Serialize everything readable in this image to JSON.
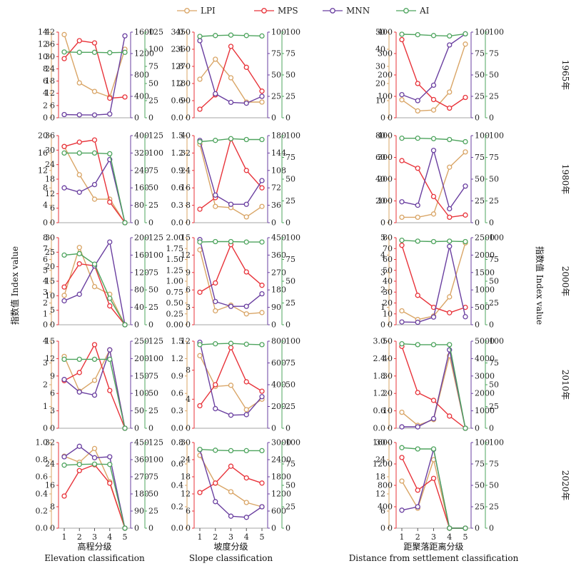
{
  "colors": {
    "LPI": "#d9a566",
    "MPS": "#e8333a",
    "MNN": "#6a3fa0",
    "AI": "#4ea45e"
  },
  "legend": [
    "LPI",
    "MPS",
    "MNN",
    "AI"
  ],
  "y_axis_label_left": "指数值 Index value",
  "y_axis_label_right": "指数值 Index value",
  "column_labels": [
    {
      "cn": "高程分级",
      "en": "Elevation classification"
    },
    {
      "cn": "坡度分级",
      "en": "Slope classification"
    },
    {
      "cn": "距聚落距离分级",
      "en": "Distance from settlement classification"
    }
  ],
  "row_labels": [
    "1965年",
    "1980年",
    "2000年",
    "2010年",
    "2020年"
  ],
  "chart_data": {
    "type": "line",
    "x": [
      1,
      2,
      3,
      4,
      5
    ],
    "series_names": [
      "LPI",
      "MPS",
      "MNN",
      "AI"
    ],
    "panels": [
      {
        "row": "1965年",
        "col": "高程分级",
        "axes": {
          "LPI": [
            0,
            14,
            2
          ],
          "MPS": [
            0,
            42,
            6
          ],
          "MNN": [
            0,
            1600,
            400
          ],
          "AI": [
            0,
            125,
            25
          ]
        },
        "LPI": [
          13.6,
          5.7,
          4.3,
          3.4,
          11.2
        ],
        "MPS": [
          29.0,
          37.8,
          36.7,
          9.6,
          10.2
        ],
        "MNN": [
          60,
          55,
          52,
          70,
          1530
        ],
        "AI": [
          96,
          95.5,
          95.5,
          95,
          95.5
        ]
      },
      {
        "row": "1965年",
        "col": "坡度分级",
        "axes": {
          "LPI": [
            0,
            3.0,
            0.6
          ],
          "MPS": [
            0,
            450,
            90
          ],
          "MNN": [
            0,
            100,
            25
          ],
          "AI": [
            0,
            100,
            25
          ]
        },
        "LPI": [
          1.35,
          2.05,
          1.4,
          0.55,
          0.55
        ],
        "MPS": [
          45,
          120,
          375,
          265,
          140
        ],
        "MNN": [
          90,
          28,
          18,
          17,
          25
        ],
        "AI": [
          95,
          96,
          96.5,
          96,
          95.5
        ]
      },
      {
        "row": "1965年",
        "col": "距聚落距离分级",
        "axes": {
          "LPI": [
            0,
            50,
            10
          ],
          "MPS": [
            0,
            400,
            100
          ],
          "MNN": [
            0,
            100,
            25
          ],
          "AI": [
            0,
            100,
            25
          ]
        },
        "LPI": [
          10.5,
          4.0,
          4.5,
          15,
          43
        ],
        "MPS": [
          365,
          160,
          85,
          45,
          95
        ],
        "MNN": [
          27,
          20,
          38,
          85,
          98
        ],
        "AI": [
          97.5,
          97,
          96,
          95.5,
          98
        ]
      },
      {
        "row": "1980年",
        "col": "高程分级",
        "axes": {
          "LPI": [
            0,
            20,
            4
          ],
          "MPS": [
            0,
            36,
            6
          ],
          "MNN": [
            0,
            400,
            80
          ],
          "AI": [
            0,
            125,
            25
          ]
        },
        "LPI": [
          17.5,
          11,
          5.4,
          5.4,
          0
        ],
        "MPS": [
          31.5,
          33.3,
          34.2,
          8.5,
          0
        ],
        "MNN": [
          160,
          140,
          175,
          290,
          0
        ],
        "AI": [
          100,
          100,
          100,
          99,
          0
        ]
      },
      {
        "row": "1980年",
        "col": "坡度分级",
        "axes": {
          "LPI": [
            0,
            1.5,
            0.3
          ],
          "MPS": [
            0,
            40,
            8
          ],
          "MNN": [
            0,
            180,
            36
          ],
          "AI": [
            0,
            100,
            25
          ]
        },
        "LPI": [
          1.35,
          0.28,
          0.26,
          0.1,
          0.28
        ],
        "MPS": [
          6.2,
          11.5,
          38.5,
          24,
          16
        ],
        "MNN": [
          170,
          57,
          38,
          38,
          87
        ],
        "AI": [
          93,
          94.5,
          96.5,
          95.5,
          95.5
        ]
      },
      {
        "row": "1980年",
        "col": "距聚落距离分级",
        "axes": {
          "LPI": [
            0,
            80,
            20
          ],
          "MPS": [
            0,
            400,
            100
          ],
          "MNN": [
            0,
            100,
            25
          ],
          "AI": [
            0,
            100,
            25
          ]
        },
        "LPI": [
          5,
          5,
          8,
          51,
          65
        ],
        "MPS": [
          285,
          250,
          120,
          25,
          35
        ],
        "MNN": [
          24,
          20,
          83,
          16,
          42
        ],
        "AI": [
          97,
          97,
          96.5,
          95.5,
          93
        ]
      },
      {
        "row": "2000年",
        "col": "高程分级",
        "axes": {
          "LPI": [
            0,
            8,
            1
          ],
          "MPS": [
            0,
            30,
            5
          ],
          "MNN": [
            0,
            200,
            40
          ],
          "AI": [
            0,
            125,
            25
          ]
        },
        "LPI": [
          2.7,
          7.1,
          3.5,
          2.8,
          0
        ],
        "MPS": [
          13,
          21,
          20.3,
          6.5,
          0
        ],
        "MNN": [
          55,
          70,
          135,
          190,
          0
        ],
        "AI": [
          100,
          102,
          87,
          38,
          0
        ]
      },
      {
        "row": "2000年",
        "col": "坡度分级",
        "axes": {
          "LPI": [
            0,
            2.0,
            0.25
          ],
          "MPS": [
            0,
            15,
            3
          ],
          "MNN": [
            0,
            450,
            90
          ],
          "AI": [
            0,
            100,
            25
          ]
        },
        "LPI": [
          1.72,
          0.32,
          0.45,
          0.25,
          0.28
        ],
        "MPS": [
          5.6,
          7.2,
          13.8,
          9.1,
          6.8
        ],
        "MNN": [
          440,
          120,
          95,
          95,
          160
        ],
        "AI": [
          95,
          95.5,
          95.5,
          95,
          95
        ]
      },
      {
        "row": "2000年",
        "col": "距聚落距离分级",
        "axes": {
          "LPI": [
            0,
            5,
            1
          ],
          "MPS": [
            0,
            80,
            10
          ],
          "MNN": [
            0,
            2500,
            500
          ],
          "AI": [
            0,
            100,
            25
          ]
        },
        "LPI": [
          0.8,
          0.3,
          0.5,
          1.6,
          4.7
        ],
        "MPS": [
          73,
          27,
          16,
          11,
          16
        ],
        "MNN": [
          80,
          70,
          220,
          2250,
          230
        ],
        "AI": [
          97,
          96,
          95.5,
          96,
          95.5
        ]
      },
      {
        "row": "2010年",
        "col": "高程分级",
        "axes": {
          "LPI": [
            0,
            4,
            1
          ],
          "MPS": [
            0,
            15,
            3
          ],
          "MNN": [
            0,
            250,
            50
          ],
          "AI": [
            0,
            125,
            25
          ]
        },
        "LPI": [
          3.3,
          1.7,
          2.2,
          3.6,
          0
        ],
        "MPS": [
          8.2,
          9.6,
          14.4,
          6.5,
          0
        ],
        "MNN": [
          140,
          104,
          95,
          225,
          0
        ],
        "AI": [
          99,
          99,
          99,
          99,
          0
        ]
      },
      {
        "row": "2010年",
        "col": "坡度分级",
        "axes": {
          "LPI": [
            0,
            1.5,
            0.3
          ],
          "MPS": [
            0,
            12,
            4
          ],
          "MNN": [
            0,
            800,
            200
          ],
          "AI": [
            0,
            100,
            25
          ]
        },
        "LPI": [
          1.25,
          0.72,
          0.74,
          0.32,
          0.5
        ],
        "MPS": [
          3.1,
          6.0,
          11.1,
          6.4,
          5.1
        ],
        "MNN": [
          790,
          180,
          120,
          125,
          290
        ],
        "AI": [
          96,
          97,
          97.5,
          96.5,
          96
        ]
      },
      {
        "row": "2010年",
        "col": "距聚落距离分级",
        "axes": {
          "LPI": [
            0,
            3.0,
            0.6
          ],
          "MPS": [
            0,
            50,
            10
          ],
          "MNN": [
            0,
            5000,
            1000
          ],
          "AI": [
            0,
            100,
            25
          ]
        },
        "LPI": [
          0.55,
          0.1,
          0.3,
          2.5,
          0
        ],
        "MPS": [
          47,
          20.5,
          16,
          7,
          0
        ],
        "MNN": [
          80,
          80,
          550,
          4500,
          0
        ],
        "AI": [
          97,
          96,
          96,
          96,
          0
        ]
      },
      {
        "row": "2020年",
        "col": "高程分级",
        "axes": {
          "LPI": [
            0,
            1.0,
            0.2
          ],
          "MPS": [
            0,
            32,
            8
          ],
          "MNN": [
            0,
            450,
            90
          ],
          "AI": [
            0,
            125,
            25
          ]
        },
        "LPI": [
          0.84,
          0.77,
          0.93,
          0.54,
          0
        ],
        "MPS": [
          12,
          21.5,
          23.7,
          16.8,
          0
        ],
        "MNN": [
          375,
          430,
          370,
          375,
          0
        ],
        "AI": [
          92,
          93,
          93.5,
          93,
          0
        ]
      },
      {
        "row": "2020年",
        "col": "坡度分级",
        "axes": {
          "LPI": [
            0,
            0.8,
            0.2
          ],
          "MPS": [
            0,
            30,
            6
          ],
          "MNN": [
            0,
            3000,
            600
          ],
          "AI": [
            0,
            100,
            25
          ]
        },
        "LPI": [
          0.68,
          0.42,
          0.34,
          0.24,
          0.2
        ],
        "MPS": [
          12.5,
          15.8,
          21.7,
          17.6,
          15.8
        ],
        "MNN": [
          2750,
          930,
          420,
          380,
          750
        ],
        "AI": [
          92,
          91,
          90.5,
          90.5,
          90.5
        ]
      },
      {
        "row": "2020年",
        "col": "距聚落距离分级",
        "axes": {
          "LPI": [
            0,
            30,
            6
          ],
          "MPS": [
            0,
            1600,
            400
          ],
          "MNN": [
            0,
            100,
            25
          ],
          "AI": [
            0,
            100,
            25
          ]
        },
        "LPI": [
          16.5,
          7,
          24,
          0,
          0
        ],
        "MPS": [
          1320,
          710,
          930,
          0,
          0
        ],
        "MNN": [
          21,
          25,
          92,
          0,
          0
        ],
        "AI": [
          94,
          92.5,
          92.5,
          0,
          0
        ]
      }
    ]
  }
}
